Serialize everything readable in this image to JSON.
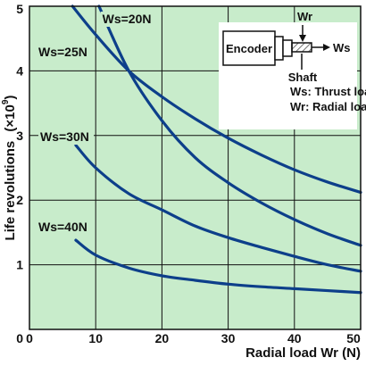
{
  "chart_data": {
    "type": "line",
    "xlabel": "Radial load Wr (N)",
    "ylabel": "Life revolutions",
    "ylabel_unit_prefix": "(×10",
    "ylabel_unit_exp": "9",
    "ylabel_unit_suffix": ")",
    "xlim": [
      0,
      50
    ],
    "ylim": [
      0,
      5
    ],
    "x_ticks": [
      "0",
      "10",
      "20",
      "30",
      "40",
      "50"
    ],
    "y_ticks": [
      "1",
      "2",
      "3",
      "4",
      "5"
    ],
    "grid": true,
    "background_color": "#c8eccb",
    "line_color": "#0d3f8a",
    "series": [
      {
        "name": "Ws=20N",
        "x": [
          6.5,
          10,
          15,
          20,
          25,
          30,
          35,
          40,
          45,
          50
        ],
        "y": [
          5.0,
          4.56,
          4.0,
          3.6,
          3.26,
          2.96,
          2.7,
          2.47,
          2.28,
          2.12
        ]
      },
      {
        "name": "Ws=25N",
        "x": [
          10.5,
          15,
          20,
          25,
          30,
          35,
          40,
          45,
          50
        ],
        "y": [
          5.0,
          4.0,
          3.23,
          2.66,
          2.27,
          1.96,
          1.7,
          1.48,
          1.3
        ]
      },
      {
        "name": "Ws=30N",
        "x": [
          7,
          10,
          15,
          20,
          25,
          30,
          35,
          40,
          45,
          50
        ],
        "y": [
          2.85,
          2.5,
          2.1,
          1.85,
          1.6,
          1.42,
          1.27,
          1.13,
          1.0,
          0.9
        ]
      },
      {
        "name": "Ws=40N",
        "x": [
          7,
          10,
          15,
          20,
          25,
          30,
          35,
          40,
          45,
          50
        ],
        "y": [
          1.38,
          1.15,
          0.95,
          0.83,
          0.76,
          0.7,
          0.66,
          0.63,
          0.6,
          0.57
        ]
      }
    ]
  },
  "inset": {
    "encoder_label": "Encoder",
    "wr_label": "Wr",
    "ws_label": "Ws",
    "shaft_label": "Shaft",
    "legend_ws": "Ws: Thrust load",
    "legend_wr": "Wr: Radial load"
  }
}
